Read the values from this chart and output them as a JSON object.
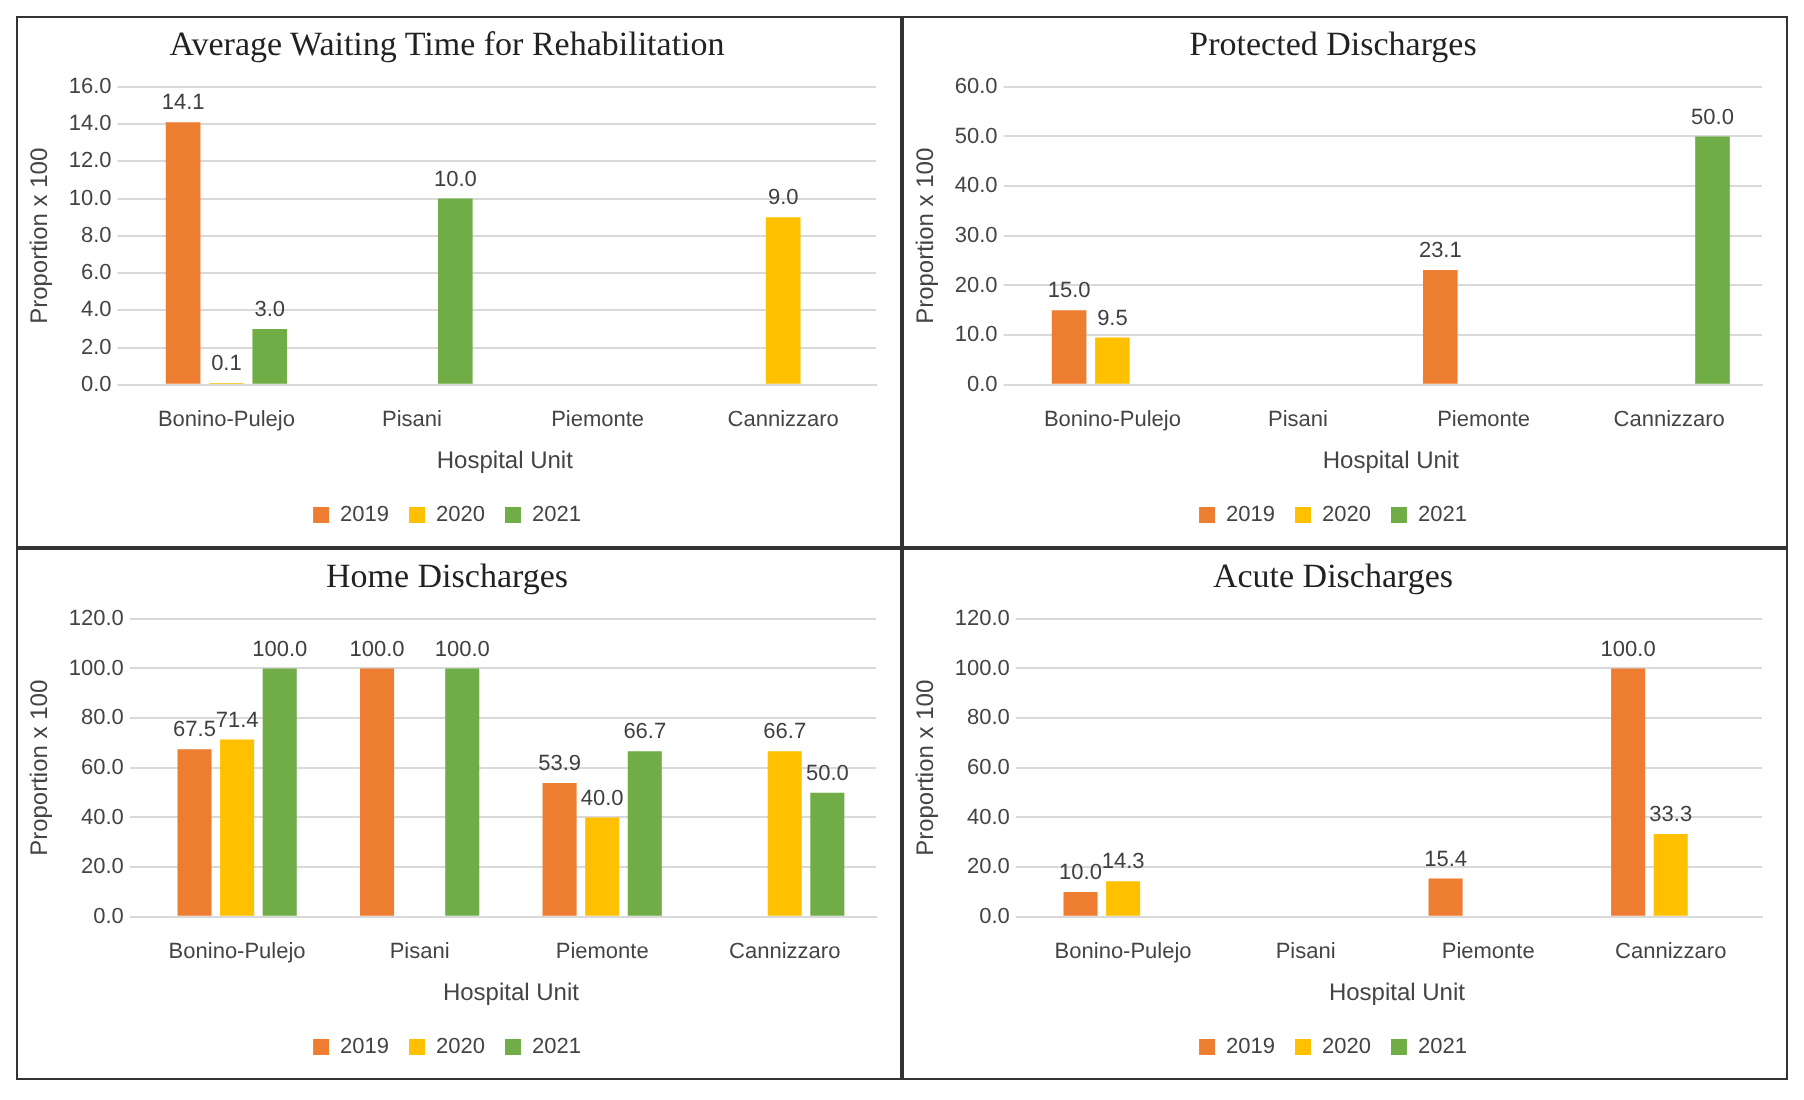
{
  "chart_data": [
    {
      "type": "bar",
      "title": "Average Waiting Time for Rehabilitation",
      "xlabel": "Hospital Unit",
      "ylabel": "Proportion x 100",
      "categories": [
        "Bonino-Pulejo",
        "Pisani",
        "Piemonte",
        "Cannizzaro"
      ],
      "series": [
        {
          "name": "2019",
          "color": "#ed7d31",
          "values": [
            14.1,
            null,
            null,
            null
          ],
          "value_labels": [
            "14.1",
            null,
            null,
            null
          ]
        },
        {
          "name": "2020",
          "color": "#ffc000",
          "values": [
            0.1,
            null,
            null,
            9.0
          ],
          "value_labels": [
            "0.1",
            null,
            null,
            "9.0"
          ]
        },
        {
          "name": "2021",
          "color": "#70ad47",
          "values": [
            3.0,
            10.0,
            null,
            null
          ],
          "value_labels": [
            "3.0",
            "10.0",
            null,
            null
          ]
        }
      ],
      "ylim": [
        0,
        16
      ],
      "yticks": [
        {
          "value": 0,
          "label": "0.0"
        },
        {
          "value": 2,
          "label": "2.0"
        },
        {
          "value": 4,
          "label": "4.0"
        },
        {
          "value": 6,
          "label": "6.0"
        },
        {
          "value": 8,
          "label": "8.0"
        },
        {
          "value": 10,
          "label": "10.0"
        },
        {
          "value": 12,
          "label": "12.0"
        },
        {
          "value": 14,
          "label": "14.0"
        },
        {
          "value": 16,
          "label": "16.0"
        }
      ],
      "grid": "y",
      "legend": "bottom"
    },
    {
      "type": "bar",
      "title": "Protected Discharges",
      "xlabel": "Hospital Unit",
      "ylabel": "Proportion x 100",
      "categories": [
        "Bonino-Pulejo",
        "Pisani",
        "Piemonte",
        "Cannizzaro"
      ],
      "series": [
        {
          "name": "2019",
          "color": "#ed7d31",
          "values": [
            15.0,
            null,
            23.1,
            null
          ],
          "value_labels": [
            "15.0",
            null,
            "23.1",
            null
          ]
        },
        {
          "name": "2020",
          "color": "#ffc000",
          "values": [
            9.5,
            null,
            null,
            null
          ],
          "value_labels": [
            "9.5",
            null,
            null,
            null
          ]
        },
        {
          "name": "2021",
          "color": "#70ad47",
          "values": [
            null,
            null,
            null,
            50.0
          ],
          "value_labels": [
            null,
            null,
            null,
            "50.0"
          ]
        }
      ],
      "ylim": [
        0,
        60
      ],
      "yticks": [
        {
          "value": 0,
          "label": "0.0"
        },
        {
          "value": 10,
          "label": "10.0"
        },
        {
          "value": 20,
          "label": "20.0"
        },
        {
          "value": 30,
          "label": "30.0"
        },
        {
          "value": 40,
          "label": "40.0"
        },
        {
          "value": 50,
          "label": "50.0"
        },
        {
          "value": 60,
          "label": "60.0"
        }
      ],
      "grid": "y",
      "legend": "bottom"
    },
    {
      "type": "bar",
      "title": "Home Discharges",
      "xlabel": "Hospital Unit",
      "ylabel": "Proportion x 100",
      "categories": [
        "Bonino-Pulejo",
        "Pisani",
        "Piemonte",
        "Cannizzaro"
      ],
      "series": [
        {
          "name": "2019",
          "color": "#ed7d31",
          "values": [
            67.5,
            100.0,
            53.9,
            null
          ],
          "value_labels": [
            "67.5",
            "100.0",
            "53.9",
            null
          ]
        },
        {
          "name": "2020",
          "color": "#ffc000",
          "values": [
            71.4,
            null,
            40.0,
            66.7
          ],
          "value_labels": [
            "71.4",
            null,
            "40.0",
            "66.7"
          ]
        },
        {
          "name": "2021",
          "color": "#70ad47",
          "values": [
            100.0,
            100.0,
            66.7,
            50.0
          ],
          "value_labels": [
            "100.0",
            "100.0",
            "66.7",
            "50.0"
          ]
        }
      ],
      "ylim": [
        0,
        120
      ],
      "yticks": [
        {
          "value": 0,
          "label": "0.0"
        },
        {
          "value": 20,
          "label": "20.0"
        },
        {
          "value": 40,
          "label": "40.0"
        },
        {
          "value": 60,
          "label": "60.0"
        },
        {
          "value": 80,
          "label": "80.0"
        },
        {
          "value": 100,
          "label": "100.0"
        },
        {
          "value": 120,
          "label": "120.0"
        }
      ],
      "grid": "y",
      "legend": "bottom"
    },
    {
      "type": "bar",
      "title": "Acute Discharges",
      "xlabel": "Hospital Unit",
      "ylabel": "Proportion x 100",
      "categories": [
        "Bonino-Pulejo",
        "Pisani",
        "Piemonte",
        "Cannizzaro"
      ],
      "series": [
        {
          "name": "2019",
          "color": "#ed7d31",
          "values": [
            10.0,
            null,
            15.4,
            100.0
          ],
          "value_labels": [
            "10.0",
            null,
            "15.4",
            "100.0"
          ]
        },
        {
          "name": "2020",
          "color": "#ffc000",
          "values": [
            14.3,
            null,
            null,
            33.3
          ],
          "value_labels": [
            "14.3",
            null,
            null,
            "33.3"
          ]
        },
        {
          "name": "2021",
          "color": "#70ad47",
          "values": [
            null,
            null,
            null,
            null
          ]
        }
      ],
      "ylim": [
        0,
        120
      ],
      "yticks": [
        {
          "value": 0,
          "label": "0.0"
        },
        {
          "value": 20,
          "label": "20.0"
        },
        {
          "value": 40,
          "label": "40.0"
        },
        {
          "value": 60,
          "label": "60.0"
        },
        {
          "value": 80,
          "label": "80.0"
        },
        {
          "value": 100,
          "label": "100.0"
        },
        {
          "value": 120,
          "label": "120.0"
        }
      ],
      "grid": "y",
      "legend": "bottom"
    }
  ]
}
